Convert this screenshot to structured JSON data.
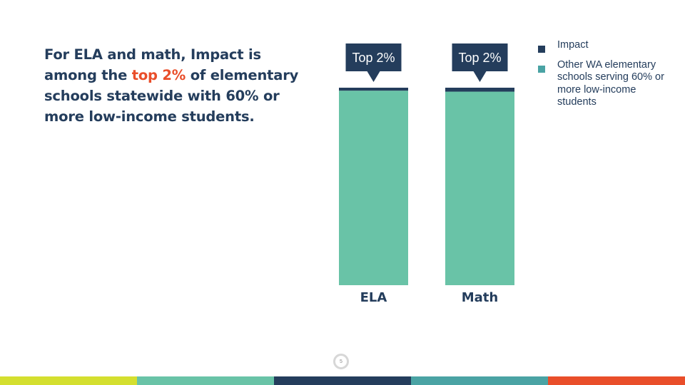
{
  "headline": {
    "pre": "For ELA and math, Impact is among the ",
    "highlight": "top 2%",
    "post": " of elementary schools statewide with 60% or more low-income students."
  },
  "colors": {
    "impact": "#243d5c",
    "other": "#69c3a7",
    "highlight": "#e94e2a",
    "legend_other_swatch": "#4aa3a4"
  },
  "chart_data": {
    "type": "bar",
    "stacked": true,
    "categories": [
      "ELA",
      "Math"
    ],
    "series": [
      {
        "name": "Other WA elementary schools serving 60% or more low-income students",
        "values": [
          98.5,
          98
        ]
      },
      {
        "name": "Impact",
        "values": [
          1.5,
          2
        ]
      }
    ],
    "annotations": [
      "Top 2%",
      "Top 2%"
    ],
    "ylim": [
      0,
      100
    ],
    "grid": false,
    "legend": "top-right"
  },
  "legend": {
    "items": [
      {
        "label": "Impact",
        "color": "#243d5c"
      },
      {
        "label": "Other WA elementary schools serving 60% or more low-income students",
        "color": "#4aa3a4"
      }
    ]
  },
  "page_number": "5",
  "footer": {
    "colors": [
      "#d4df2f",
      "#69c3a7",
      "#243d5c",
      "#4aa3a4",
      "#e94e2a"
    ]
  }
}
